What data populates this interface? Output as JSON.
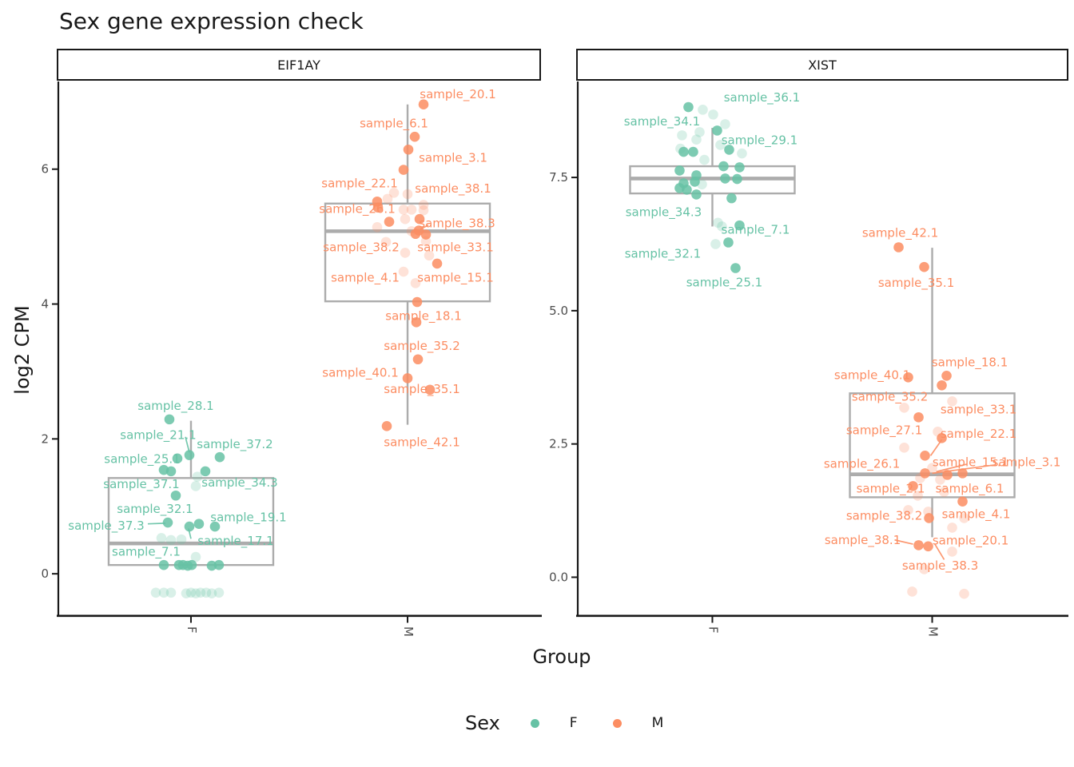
{
  "title": "Sex gene expression check",
  "axes": {
    "y_label": "log2 CPM",
    "x_label": "Group"
  },
  "legend": {
    "title": "Sex",
    "items": [
      {
        "label": "F",
        "color": "#66C2A5"
      },
      {
        "label": "M",
        "color": "#FC8D62"
      }
    ]
  },
  "colors": {
    "F": "#66C2A5",
    "M": "#FC8D62",
    "box_stroke": "#ACACAC",
    "axis_line": "#191919",
    "tick_text": "#4D4D4D"
  },
  "chart_data": {
    "type": "boxplot-jitter",
    "title": "Sex gene expression check",
    "xlabel": "Group",
    "ylabel": "log2 CPM",
    "legend_position": "bottom",
    "facets": [
      {
        "name": "EIF1AY",
        "ylim": [
          -0.62,
          7.3
        ],
        "yticks": [
          {
            "v": 0,
            "label": "0"
          },
          {
            "v": 2,
            "label": "2"
          },
          {
            "v": 4,
            "label": "4"
          },
          {
            "v": 6,
            "label": "6"
          }
        ],
        "x_categories": [
          "F",
          "M"
        ],
        "boxes": {
          "F": {
            "q1": 0.13,
            "median": 0.45,
            "q3": 1.42,
            "lo": 0.13,
            "hi": 2.27
          },
          "M": {
            "q1": 4.04,
            "median": 5.08,
            "q3": 5.49,
            "lo": 2.21,
            "hi": 6.96
          }
        },
        "points": {
          "F": {
            "strong": [
              [
                2.29,
                -27
              ],
              [
                1.76,
                -2
              ],
              [
                1.73,
                36
              ],
              [
                1.71,
                -17
              ],
              [
                1.54,
                -34
              ],
              [
                1.52,
                -25
              ],
              [
                1.52,
                18
              ],
              [
                1.16,
                -19
              ],
              [
                0.76,
                -29
              ],
              [
                0.74,
                10
              ],
              [
                0.7,
                30
              ],
              [
                0.7,
                -2
              ],
              [
                0.13,
                -34
              ],
              [
                0.13,
                -15
              ],
              [
                0.13,
                -10
              ],
              [
                0.12,
                -4
              ],
              [
                0.13,
                1
              ],
              [
                0.12,
                26
              ],
              [
                0.13,
                35
              ]
            ],
            "pale": [
              [
                1.44,
                8
              ],
              [
                1.3,
                6
              ],
              [
                0.53,
                -37
              ],
              [
                0.51,
                -12
              ],
              [
                0.5,
                -25
              ],
              [
                0.25,
                6
              ],
              [
                -0.28,
                -44
              ],
              [
                -0.28,
                -34
              ],
              [
                -0.28,
                -25
              ],
              [
                -0.29,
                -6
              ],
              [
                -0.28,
                0
              ],
              [
                -0.29,
                6
              ],
              [
                -0.28,
                12
              ],
              [
                -0.28,
                19
              ],
              [
                -0.29,
                26
              ],
              [
                -0.28,
                35
              ]
            ]
          },
          "M": {
            "strong": [
              [
                6.96,
                20
              ],
              [
                6.48,
                9
              ],
              [
                6.29,
                1
              ],
              [
                5.99,
                -5
              ],
              [
                5.52,
                -38
              ],
              [
                5.43,
                -37
              ],
              [
                5.26,
                15
              ],
              [
                5.22,
                -23
              ],
              [
                5.09,
                14
              ],
              [
                5.04,
                10
              ],
              [
                5.03,
                23
              ],
              [
                4.6,
                37
              ],
              [
                4.03,
                12
              ],
              [
                3.73,
                11
              ],
              [
                3.18,
                13
              ],
              [
                2.9,
                0
              ],
              [
                2.73,
                28
              ],
              [
                2.19,
                -26
              ]
            ],
            "pale": [
              [
                5.65,
                -17
              ],
              [
                5.63,
                0
              ],
              [
                5.56,
                -25
              ],
              [
                5.47,
                20
              ],
              [
                5.4,
                -5
              ],
              [
                5.4,
                5
              ],
              [
                5.39,
                20
              ],
              [
                5.26,
                -3
              ],
              [
                5.14,
                -38
              ],
              [
                5.08,
                5
              ],
              [
                4.93,
                23
              ],
              [
                4.92,
                -27
              ],
              [
                4.76,
                -3
              ],
              [
                4.72,
                27
              ],
              [
                4.48,
                -5
              ],
              [
                4.31,
                10
              ]
            ]
          }
        },
        "labels": {
          "F": [
            [
              "sample_28.1",
              -19,
              2.49
            ],
            [
              "sample_21.1",
              -41,
              2.06
            ],
            [
              "sample_37.2",
              55,
              1.92
            ],
            [
              "sample_25.1",
              -61,
              1.7
            ],
            [
              "sample_37.1",
              -62,
              1.33
            ],
            [
              "sample_34.3",
              61,
              1.35
            ],
            [
              "sample_32.1",
              -45,
              0.96
            ],
            [
              "sample_19.1",
              72,
              0.84
            ],
            [
              "sample_37.3",
              -106,
              0.71
            ],
            [
              "sample_17.1",
              56,
              0.49
            ],
            [
              "sample_7.1",
              -56,
              0.33
            ]
          ],
          "M": [
            [
              "sample_20.1",
              63,
              7.11
            ],
            [
              "sample_6.1",
              -17,
              6.68
            ],
            [
              "sample_3.1",
              57,
              6.17
            ],
            [
              "sample_22.1",
              -60,
              5.79
            ],
            [
              "sample_38.1",
              57,
              5.71
            ],
            [
              "sample_26.1",
              -63,
              5.41
            ],
            [
              "sample_38.3",
              62,
              5.2
            ],
            [
              "sample_33.1",
              60,
              4.84
            ],
            [
              "sample_38.2",
              -58,
              4.84
            ],
            [
              "sample_4.1",
              -53,
              4.39
            ],
            [
              "sample_15.1",
              60,
              4.39
            ],
            [
              "sample_18.1",
              20,
              3.82
            ],
            [
              "sample_35.2",
              18,
              3.38
            ],
            [
              "sample_40.1",
              -59,
              2.98
            ],
            [
              "sample_35.1",
              18,
              2.74
            ],
            [
              "sample_42.1",
              18,
              1.95
            ]
          ]
        },
        "leaders": {
          "F": [
            [
              -7,
              2.03,
              -2,
              1.8
            ],
            [
              -54,
              0.74,
              -32,
              0.75
            ],
            [
              0,
              0.52,
              -3,
              0.67
            ]
          ],
          "M": [
            [
              16,
              5.11,
              26,
              5.17
            ]
          ]
        }
      },
      {
        "name": "XIST",
        "ylim": [
          -0.72,
          9.3
        ],
        "yticks": [
          {
            "v": 0,
            "label": "0.0"
          },
          {
            "v": 2.5,
            "label": "2.5"
          },
          {
            "v": 5,
            "label": "5.0"
          },
          {
            "v": 7.5,
            "label": "7.5"
          }
        ],
        "x_categories": [
          "F",
          "M"
        ],
        "boxes": {
          "F": {
            "q1": 7.2,
            "median": 7.48,
            "q3": 7.71,
            "lo": 6.58,
            "hi": 8.43
          },
          "M": {
            "q1": 1.5,
            "median": 1.93,
            "q3": 3.45,
            "lo": 0.75,
            "hi": 6.18
          }
        },
        "points": {
          "F": {
            "strong": [
              [
                8.82,
                -30
              ],
              [
                8.38,
                6
              ],
              [
                8.02,
                21
              ],
              [
                7.98,
                -36
              ],
              [
                7.98,
                -24
              ],
              [
                7.71,
                14
              ],
              [
                7.69,
                34
              ],
              [
                7.63,
                -41
              ],
              [
                7.54,
                -20
              ],
              [
                7.48,
                16
              ],
              [
                7.47,
                31
              ],
              [
                7.42,
                -22
              ],
              [
                7.39,
                -36
              ],
              [
                7.3,
                -41
              ],
              [
                7.27,
                -32
              ],
              [
                7.18,
                -20
              ],
              [
                7.11,
                24
              ],
              [
                6.6,
                34
              ],
              [
                6.28,
                20
              ],
              [
                5.8,
                29
              ]
            ],
            "pale": [
              [
                8.77,
                -12
              ],
              [
                8.68,
                1
              ],
              [
                8.5,
                16
              ],
              [
                8.35,
                -16
              ],
              [
                8.29,
                -38
              ],
              [
                8.21,
                -20
              ],
              [
                8.11,
                10
              ],
              [
                8.04,
                -40
              ],
              [
                7.95,
                37
              ],
              [
                7.83,
                -10
              ],
              [
                7.37,
                -13
              ],
              [
                6.65,
                7
              ],
              [
                6.58,
                12
              ],
              [
                6.25,
                4
              ]
            ]
          },
          "M": {
            "strong": [
              [
                6.19,
                -42
              ],
              [
                5.82,
                -10
              ],
              [
                3.78,
                18
              ],
              [
                3.75,
                -30
              ],
              [
                3.6,
                12
              ],
              [
                3.0,
                -17
              ],
              [
                2.61,
                12
              ],
              [
                2.28,
                -9
              ],
              [
                1.95,
                -9
              ],
              [
                1.92,
                19
              ],
              [
                1.95,
                38
              ],
              [
                1.71,
                -24
              ],
              [
                1.42,
                38
              ],
              [
                1.11,
                -4
              ],
              [
                0.6,
                -17
              ],
              [
                0.58,
                -5
              ]
            ],
            "pale": [
              [
                3.3,
                25
              ],
              [
                3.18,
                -35
              ],
              [
                2.73,
                7
              ],
              [
                2.43,
                -35
              ],
              [
                2.05,
                0
              ],
              [
                1.86,
                -15
              ],
              [
                1.83,
                10
              ],
              [
                1.6,
                15
              ],
              [
                1.53,
                -18
              ],
              [
                1.26,
                -30
              ],
              [
                1.23,
                -5
              ],
              [
                1.11,
                40
              ],
              [
                0.93,
                25
              ],
              [
                0.48,
                25
              ],
              [
                0.15,
                -10
              ],
              [
                -0.27,
                -25
              ],
              [
                -0.31,
                40
              ]
            ]
          }
        },
        "labels": {
          "F": [
            [
              "sample_36.1",
              62,
              9.0
            ],
            [
              "sample_34.1",
              -63,
              8.55
            ],
            [
              "sample_29.1",
              59,
              8.2
            ],
            [
              "sample_34.3",
              -61,
              6.85
            ],
            [
              "sample_7.1",
              54,
              6.52
            ],
            [
              "sample_32.1",
              -62,
              6.07
            ],
            [
              "sample_25.1",
              15,
              5.53
            ]
          ],
          "M": [
            [
              "sample_42.1",
              -40,
              6.46
            ],
            [
              "sample_35.1",
              -20,
              5.52
            ],
            [
              "sample_18.1",
              47,
              4.03
            ],
            [
              "sample_40.1",
              -75,
              3.79
            ],
            [
              "sample_35.2",
              -53,
              3.39
            ],
            [
              "sample_33.1",
              58,
              3.15
            ],
            [
              "sample_27.1",
              -60,
              2.76
            ],
            [
              "sample_22.1",
              58,
              2.69
            ],
            [
              "sample_26.1",
              -88,
              2.13
            ],
            [
              "sample_15.1",
              48,
              2.16
            ],
            [
              "sample_3.1",
              118,
              2.16
            ],
            [
              "sample_2.1",
              -52,
              1.66
            ],
            [
              "sample_6.1",
              47,
              1.66
            ],
            [
              "sample_38.2",
              -60,
              1.15
            ],
            [
              "sample_4.1",
              55,
              1.18
            ],
            [
              "sample_38.1",
              -87,
              0.7
            ],
            [
              "sample_20.1",
              48,
              0.69
            ],
            [
              "sample_38.3",
              10,
              0.22
            ]
          ]
        },
        "leaders": {
          "F": [],
          "M": [
            [
              -2,
              2.28,
              12,
              2.58
            ],
            [
              5,
              1.98,
              43,
              2.12
            ],
            [
              0,
              1.95,
              80,
              2.11
            ],
            [
              -47,
              0.7,
              -24,
              0.62
            ],
            [
              3,
              0.63,
              15,
              0.33
            ]
          ]
        }
      }
    ]
  }
}
